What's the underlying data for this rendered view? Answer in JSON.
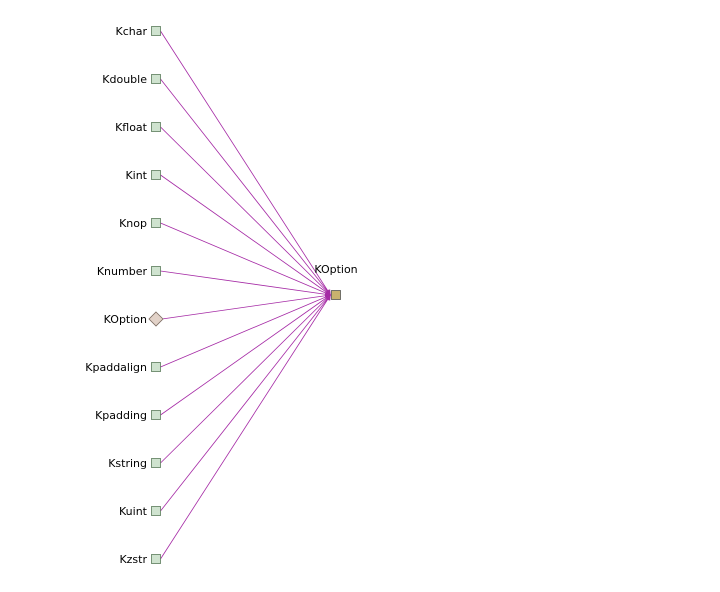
{
  "diagram": {
    "target": {
      "label": "KOption",
      "fill": "#c8b26e",
      "stroke": "#555555"
    },
    "sources": [
      {
        "label": "Kchar",
        "shape": "square"
      },
      {
        "label": "Kdouble",
        "shape": "square"
      },
      {
        "label": "Kfloat",
        "shape": "square"
      },
      {
        "label": "Kint",
        "shape": "square"
      },
      {
        "label": "Knop",
        "shape": "square"
      },
      {
        "label": "Knumber",
        "shape": "square"
      },
      {
        "label": "KOption",
        "shape": "diamond"
      },
      {
        "label": "Kpaddalign",
        "shape": "square"
      },
      {
        "label": "Kpadding",
        "shape": "square"
      },
      {
        "label": "Kstring",
        "shape": "square"
      },
      {
        "label": "Kuint",
        "shape": "square"
      },
      {
        "label": "Kzstr",
        "shape": "square"
      }
    ],
    "colors": {
      "edge": "#a52aa5",
      "square_fill": "#cfe3cf",
      "square_stroke": "#5a7a5a",
      "diamond_fill": "#e2d2c8",
      "diamond_stroke": "#7a6a60"
    }
  }
}
